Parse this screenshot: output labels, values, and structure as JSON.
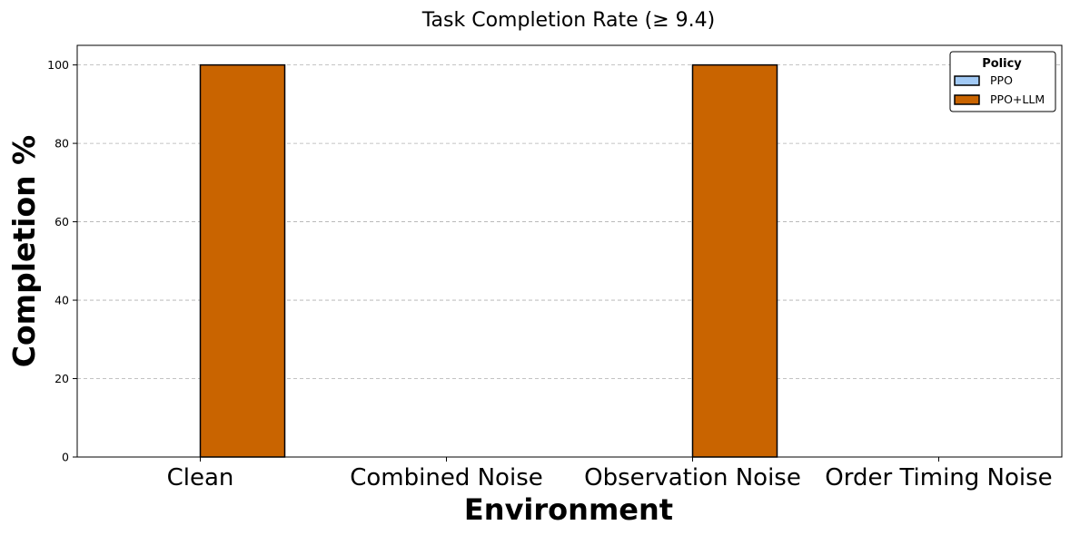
{
  "chart_data": {
    "type": "bar",
    "title": "Task Completion Rate (≥ 9.4)",
    "xlabel": "Environment",
    "ylabel": "Completion %",
    "categories": [
      "Clean",
      "Combined Noise",
      "Observation Noise",
      "Order Timing Noise"
    ],
    "series": [
      {
        "name": "PPO",
        "values": [
          0,
          0,
          0,
          0
        ],
        "color": "#a1c9f4"
      },
      {
        "name": "PPO+LLM",
        "values": [
          100,
          0,
          100,
          0
        ],
        "color": "#c96400"
      }
    ],
    "ylim": [
      0,
      105
    ],
    "yticks": [
      0,
      20,
      40,
      60,
      80,
      100
    ],
    "grid": "y-dashed",
    "legend": {
      "title": "Policy",
      "placement": "top-right"
    }
  }
}
